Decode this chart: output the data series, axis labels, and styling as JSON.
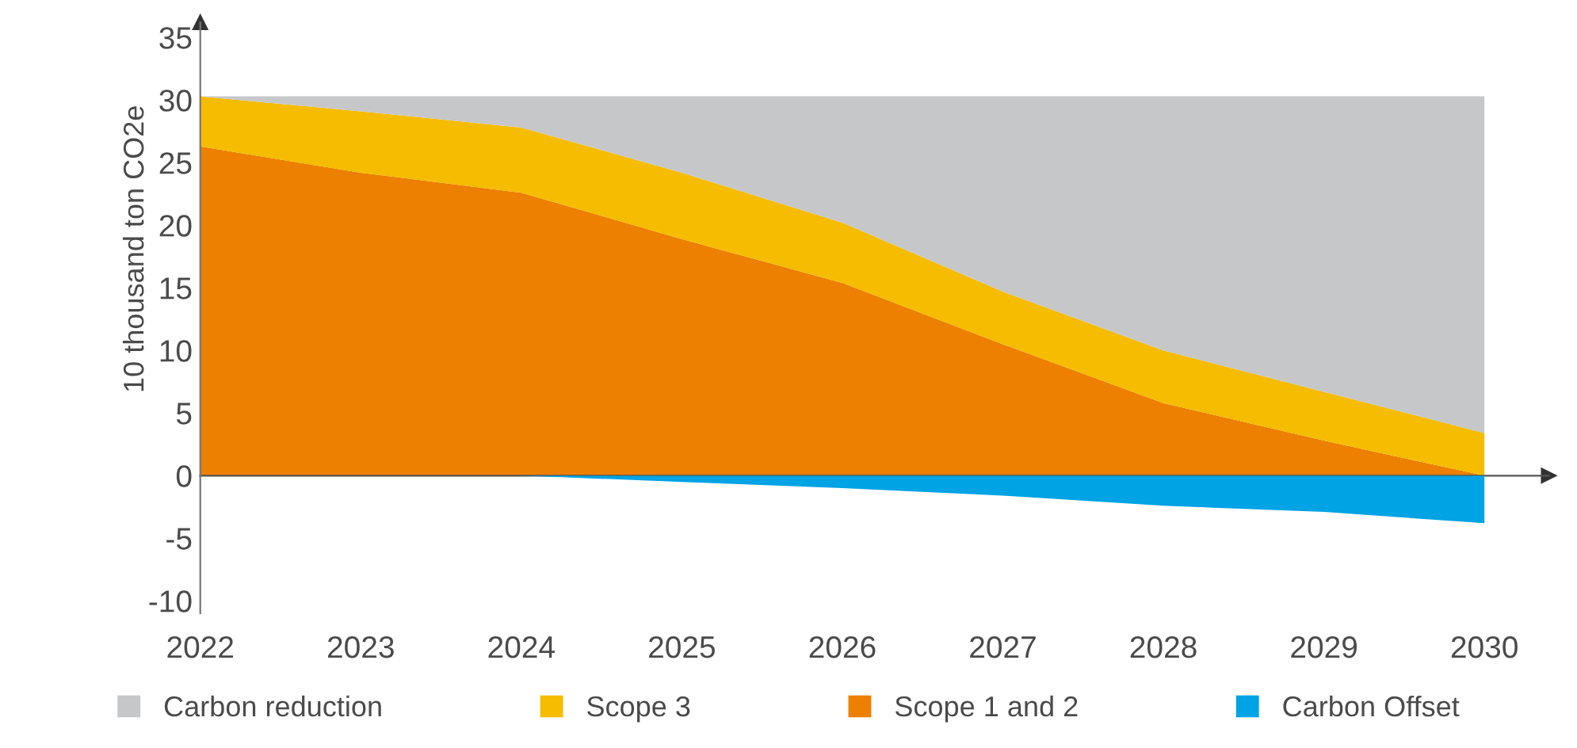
{
  "chart_data": [
    {
      "type": "area",
      "ylabel": "10 thousand ton CO2e",
      "x": [
        2022,
        2023,
        2024,
        2025,
        2026,
        2027,
        2028,
        2029,
        2030
      ],
      "stacked": true,
      "series": [
        {
          "name": "Scope 1 and 2",
          "color": "#ed8000",
          "values": [
            26.3,
            24.2,
            22.6,
            18.9,
            15.4,
            10.5,
            5.8,
            2.8,
            0
          ]
        },
        {
          "name": "Scope 3",
          "color": "#f5bc00",
          "values": [
            4.0,
            4.9,
            5.2,
            5.3,
            4.8,
            4.2,
            4.2,
            3.9,
            3.4
          ]
        },
        {
          "name": "Carbon reduction",
          "color": "#c6c7c9",
          "values": [
            0,
            1.2,
            2.5,
            6.1,
            10.1,
            15.6,
            20.3,
            23.6,
            26.9
          ]
        }
      ],
      "xlim": [
        2022,
        2030.4
      ],
      "ylim": [
        0,
        36.2
      ],
      "xticks": [
        2022,
        2023,
        2024,
        2025,
        2026,
        2027,
        2028,
        2029,
        2030
      ],
      "yticks": [
        0,
        5,
        10,
        15,
        20,
        25,
        30,
        35
      ],
      "tick_labels": "y",
      "legend": "bottom"
    },
    {
      "type": "area",
      "x": [
        2022,
        2023,
        2024,
        2025,
        2026,
        2027,
        2028,
        2029,
        2030
      ],
      "series": [
        {
          "name": "Carbon Offset",
          "color": "#00a3e3",
          "values": [
            0,
            0,
            0,
            -0.5,
            -1.0,
            -1.6,
            -2.4,
            -2.9,
            -3.8
          ]
        }
      ],
      "xlim": [
        2022,
        2030.4
      ],
      "ylim": [
        -11,
        0
      ],
      "xticks": [
        2022,
        2023,
        2024,
        2025,
        2026,
        2027,
        2028,
        2029,
        2030
      ],
      "yticks": [
        -10,
        -5
      ]
    }
  ]
}
